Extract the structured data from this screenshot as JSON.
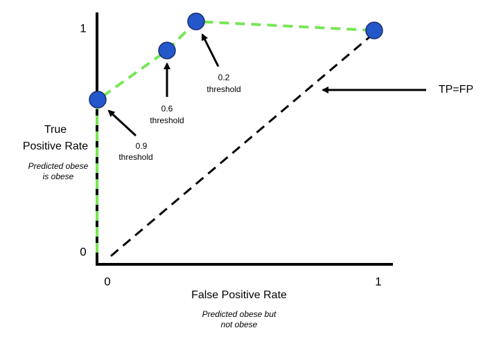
{
  "y_axis": {
    "label": [
      "True",
      "Positive Rate"
    ],
    "note": [
      "Predicted obese",
      "is obese"
    ],
    "ticks": [
      "0",
      "1"
    ]
  },
  "x_axis": {
    "label": "False Positive Rate",
    "note": [
      "Predicted obese but",
      "not obese"
    ],
    "ticks": [
      "0",
      "1"
    ]
  },
  "annotations": [
    {
      "value": "0.9",
      "text": "threshold"
    },
    {
      "value": "0.6",
      "text": "threshold"
    },
    {
      "value": "0.2",
      "text": "threshold"
    },
    {
      "text": "TP=FP"
    }
  ]
}
